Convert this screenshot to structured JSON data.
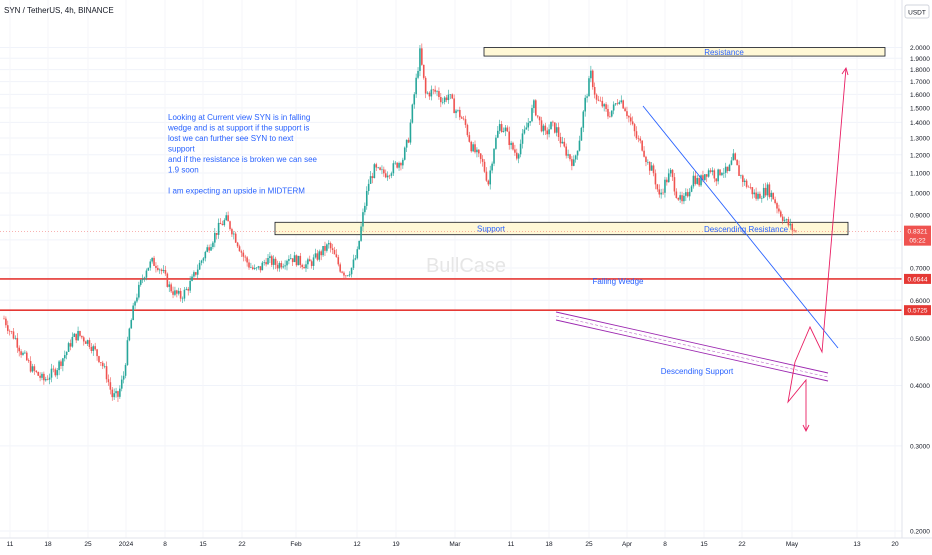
{
  "header": {
    "symbol": "SYN / TetherUS, 4h, BINANCE"
  },
  "watermark": "BullCase",
  "currency_button": "USDT",
  "annotation": {
    "lines": [
      "Looking at Current view SYN is in falling",
      "wedge and is at support if the support is",
      "lost we can further see SYN to next",
      "support",
      "and if the resistance is broken we can see",
      "1.9 soon",
      "",
      "I am expecting an upside in MIDTERM"
    ]
  },
  "colors": {
    "up": "#26a69a",
    "down": "#ef5350",
    "zone_fill": "#fff8d6",
    "trend_blue": "#2962ff",
    "support_purple": "#9c27b0",
    "level_red": "#e53935",
    "projection_pink": "#e91e63",
    "label_blue": "#2962ff"
  },
  "chart_data": {
    "type": "candlestick",
    "symbol": "SYN / TetherUS",
    "interval": "4h",
    "exchange": "BINANCE",
    "y_axis": {
      "scale": "log",
      "ticks": [
        "2.0000",
        "1.9000",
        "1.8000",
        "1.7000",
        "1.6000",
        "1.5000",
        "1.4000",
        "1.3000",
        "1.2000",
        "1.1000",
        "1.0000",
        "0.9000",
        "0.8000",
        "0.7000",
        "0.6000",
        "0.5000",
        "0.4000",
        "0.3000",
        "0.2000"
      ],
      "ylim": [
        0.2,
        2.0
      ]
    },
    "x_axis": {
      "ticks": [
        "11",
        "18",
        "25",
        "2024",
        "8",
        "15",
        "22",
        "Feb",
        "12",
        "19",
        "Mar",
        "11",
        "18",
        "25",
        "Apr",
        "8",
        "15",
        "22",
        "May",
        "13",
        "20"
      ]
    },
    "price_path": [
      [
        0,
        0.55
      ],
      [
        1,
        0.52
      ],
      [
        2,
        0.5
      ],
      [
        3,
        0.47
      ],
      [
        4,
        0.45
      ],
      [
        5,
        0.43
      ],
      [
        6,
        0.42
      ],
      [
        7,
        0.41
      ],
      [
        8,
        0.42
      ],
      [
        9,
        0.43
      ],
      [
        10,
        0.45
      ],
      [
        11,
        0.47
      ],
      [
        12,
        0.5
      ],
      [
        13,
        0.51
      ],
      [
        14,
        0.5
      ],
      [
        15,
        0.49
      ],
      [
        16,
        0.47
      ],
      [
        17,
        0.45
      ],
      [
        18,
        0.42
      ],
      [
        19,
        0.38
      ],
      [
        20,
        0.38
      ],
      [
        21,
        0.42
      ],
      [
        22,
        0.52
      ],
      [
        23,
        0.6
      ],
      [
        24,
        0.65
      ],
      [
        25,
        0.7
      ],
      [
        26,
        0.72
      ],
      [
        27,
        0.71
      ],
      [
        28,
        0.68
      ],
      [
        29,
        0.64
      ],
      [
        30,
        0.62
      ],
      [
        31,
        0.61
      ],
      [
        32,
        0.63
      ],
      [
        33,
        0.66
      ],
      [
        34,
        0.7
      ],
      [
        35,
        0.74
      ],
      [
        36,
        0.78
      ],
      [
        37,
        0.82
      ],
      [
        38,
        0.86
      ],
      [
        39,
        0.88
      ],
      [
        40,
        0.84
      ],
      [
        41,
        0.79
      ],
      [
        42,
        0.74
      ],
      [
        43,
        0.71
      ],
      [
        44,
        0.69
      ],
      [
        45,
        0.7
      ],
      [
        46,
        0.73
      ],
      [
        47,
        0.72
      ],
      [
        48,
        0.71
      ],
      [
        49,
        0.72
      ],
      [
        50,
        0.74
      ],
      [
        51,
        0.73
      ],
      [
        52,
        0.72
      ],
      [
        53,
        0.71
      ],
      [
        54,
        0.72
      ],
      [
        55,
        0.74
      ],
      [
        56,
        0.76
      ],
      [
        57,
        0.78
      ],
      [
        58,
        0.74
      ],
      [
        59,
        0.7
      ],
      [
        60,
        0.68
      ],
      [
        61,
        0.7
      ],
      [
        62,
        0.75
      ],
      [
        63,
        0.9
      ],
      [
        64,
        1.05
      ],
      [
        65,
        1.12
      ],
      [
        66,
        1.1
      ],
      [
        67,
        1.1
      ],
      [
        68,
        1.12
      ],
      [
        69,
        1.15
      ],
      [
        70,
        1.18
      ],
      [
        71,
        1.3
      ],
      [
        72,
        1.6
      ],
      [
        73,
        1.95
      ],
      [
        74,
        1.6
      ],
      [
        75,
        1.62
      ],
      [
        76,
        1.62
      ],
      [
        77,
        1.55
      ],
      [
        78,
        1.6
      ],
      [
        79,
        1.5
      ],
      [
        80,
        1.45
      ],
      [
        81,
        1.38
      ],
      [
        82,
        1.25
      ],
      [
        83,
        1.2
      ],
      [
        84,
        1.15
      ],
      [
        85,
        1.05
      ],
      [
        86,
        1.25
      ],
      [
        87,
        1.38
      ],
      [
        88,
        1.35
      ],
      [
        89,
        1.25
      ],
      [
        90,
        1.2
      ],
      [
        91,
        1.3
      ],
      [
        92,
        1.4
      ],
      [
        93,
        1.52
      ],
      [
        94,
        1.4
      ],
      [
        95,
        1.32
      ],
      [
        96,
        1.38
      ],
      [
        97,
        1.35
      ],
      [
        98,
        1.25
      ],
      [
        99,
        1.2
      ],
      [
        100,
        1.15
      ],
      [
        101,
        1.3
      ],
      [
        102,
        1.55
      ],
      [
        103,
        1.76
      ],
      [
        104,
        1.55
      ],
      [
        105,
        1.52
      ],
      [
        106,
        1.45
      ],
      [
        107,
        1.5
      ],
      [
        108,
        1.58
      ],
      [
        109,
        1.5
      ],
      [
        110,
        1.4
      ],
      [
        111,
        1.3
      ],
      [
        112,
        1.25
      ],
      [
        113,
        1.15
      ],
      [
        114,
        1.1
      ],
      [
        115,
        0.98
      ],
      [
        116,
        1.05
      ],
      [
        117,
        1.1
      ],
      [
        118,
        1.0
      ],
      [
        119,
        0.95
      ],
      [
        120,
        1.0
      ],
      [
        121,
        1.08
      ],
      [
        122,
        1.05
      ],
      [
        123,
        1.1
      ],
      [
        124,
        1.12
      ],
      [
        125,
        1.08
      ],
      [
        126,
        1.12
      ],
      [
        127,
        1.1
      ],
      [
        128,
        1.18
      ],
      [
        129,
        1.1
      ],
      [
        130,
        1.05
      ],
      [
        131,
        1.02
      ],
      [
        132,
        0.98
      ],
      [
        133,
        1.0
      ],
      [
        134,
        1.02
      ],
      [
        135,
        0.98
      ],
      [
        136,
        0.92
      ],
      [
        137,
        0.88
      ],
      [
        138,
        0.85
      ],
      [
        139,
        0.83
      ]
    ],
    "last_price": "0.8321",
    "countdown": "05:22",
    "zones": [
      {
        "label": "Resistance",
        "from": 1.92,
        "to": 2.0
      },
      {
        "label": "Support",
        "from": 0.82,
        "to": 0.87
      }
    ],
    "horizontal_levels": [
      {
        "value": "0.6644"
      },
      {
        "value": "0.5725"
      }
    ],
    "trendlines": [
      {
        "label": "Descending Resistance"
      },
      {
        "label": "Falling Wedge"
      },
      {
        "label": "Descending Support"
      }
    ]
  }
}
